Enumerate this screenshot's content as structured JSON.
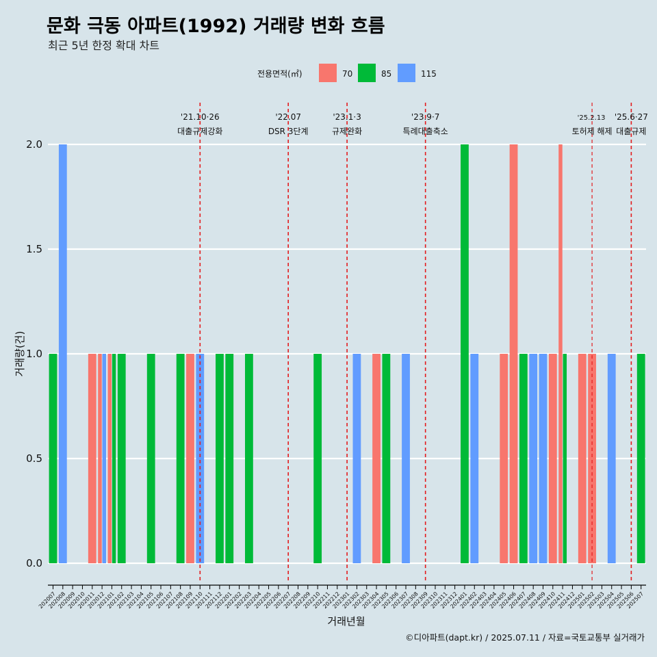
{
  "title": "문화 극동 아파트(1992) 거래량 변화 흐름",
  "subtitle": "최근 5년 한정 확대 차트",
  "caption": "©디아파트(dapt.kr) / 2025.07.11 / 자료=국토교통부 실거래가",
  "chart_data": {
    "type": "bar",
    "xlabel": "거래년월",
    "ylabel": "거래량(건)",
    "ylim": [
      0,
      2
    ],
    "yticks": [
      "0.0",
      "0.5",
      "1.0",
      "1.5",
      "2.0"
    ],
    "legend": {
      "title": "전용면적(㎡)",
      "position": "top",
      "entries": [
        {
          "name": "70",
          "color": "#f8766d"
        },
        {
          "name": "85",
          "color": "#00ba38"
        },
        {
          "name": "115",
          "color": "#619cff"
        }
      ]
    },
    "categories": [
      "202007",
      "202008",
      "202009",
      "202010",
      "202011",
      "202012",
      "202101",
      "202102",
      "202103",
      "202104",
      "202105",
      "202106",
      "202107",
      "202108",
      "202109",
      "202110",
      "202111",
      "202112",
      "202201",
      "202202",
      "202203",
      "202204",
      "202205",
      "202206",
      "202207",
      "202208",
      "202209",
      "202210",
      "202211",
      "202212",
      "202301",
      "202302",
      "202303",
      "202304",
      "202305",
      "202306",
      "202307",
      "202308",
      "202309",
      "202310",
      "202311",
      "202312",
      "202401",
      "202402",
      "202403",
      "202404",
      "202405",
      "202406",
      "202407",
      "202408",
      "202409",
      "202410",
      "202411",
      "202412",
      "202501",
      "202502",
      "202503",
      "202504",
      "202505",
      "202506",
      "202507"
    ],
    "bars": [
      {
        "month": "202007",
        "series": "85",
        "value": 1
      },
      {
        "month": "202008",
        "series": "115",
        "value": 2
      },
      {
        "month": "202011",
        "series": "70",
        "value": 1
      },
      {
        "month": "202012",
        "series": "70",
        "value": 1
      },
      {
        "month": "202012",
        "series": "115",
        "value": 1
      },
      {
        "month": "202101",
        "series": "70",
        "value": 1
      },
      {
        "month": "202101",
        "series": "85",
        "value": 1
      },
      {
        "month": "202102",
        "series": "85",
        "value": 1
      },
      {
        "month": "202105",
        "series": "85",
        "value": 1
      },
      {
        "month": "202108",
        "series": "85",
        "value": 1
      },
      {
        "month": "202109",
        "series": "70",
        "value": 1
      },
      {
        "month": "202110",
        "series": "115",
        "value": 1
      },
      {
        "month": "202112",
        "series": "85",
        "value": 1
      },
      {
        "month": "202201",
        "series": "85",
        "value": 1
      },
      {
        "month": "202203",
        "series": "85",
        "value": 1
      },
      {
        "month": "202210",
        "series": "85",
        "value": 1
      },
      {
        "month": "202302",
        "series": "115",
        "value": 1
      },
      {
        "month": "202304",
        "series": "70",
        "value": 1
      },
      {
        "month": "202305",
        "series": "85",
        "value": 1
      },
      {
        "month": "202307",
        "series": "115",
        "value": 1
      },
      {
        "month": "202401",
        "series": "85",
        "value": 2
      },
      {
        "month": "202402",
        "series": "115",
        "value": 1
      },
      {
        "month": "202405",
        "series": "70",
        "value": 1
      },
      {
        "month": "202406",
        "series": "70",
        "value": 2
      },
      {
        "month": "202407",
        "series": "85",
        "value": 1
      },
      {
        "month": "202408",
        "series": "115",
        "value": 1
      },
      {
        "month": "202409",
        "series": "115",
        "value": 1
      },
      {
        "month": "202410",
        "series": "70",
        "value": 1
      },
      {
        "month": "202411",
        "series": "70",
        "value": 2
      },
      {
        "month": "202411",
        "series": "85",
        "value": 1
      },
      {
        "month": "202501",
        "series": "70",
        "value": 1
      },
      {
        "month": "202502",
        "series": "70",
        "value": 1
      },
      {
        "month": "202504",
        "series": "115",
        "value": 1
      },
      {
        "month": "202507",
        "series": "85",
        "value": 1
      }
    ],
    "annotations": [
      {
        "month": "202110",
        "date": "'21.10·26",
        "text": "대출규제강화",
        "color": "#e41a1c"
      },
      {
        "month": "202207",
        "date": "'22.07",
        "text": "DSR 3단계",
        "color": "#e41a1c"
      },
      {
        "month": "202301",
        "date": "'23.1·3",
        "text": "규제완화",
        "color": "#e41a1c"
      },
      {
        "month": "202309",
        "date": "'23.9·7",
        "text": "특례대출축소",
        "color": "#e41a1c"
      },
      {
        "month": "202502",
        "date": "'25.2.13",
        "text": "토허제 해제",
        "color": "#e41a1c"
      },
      {
        "month": "202506",
        "date": "'25.6·27",
        "text": "대출규제",
        "color": "#e41a1c"
      }
    ]
  }
}
